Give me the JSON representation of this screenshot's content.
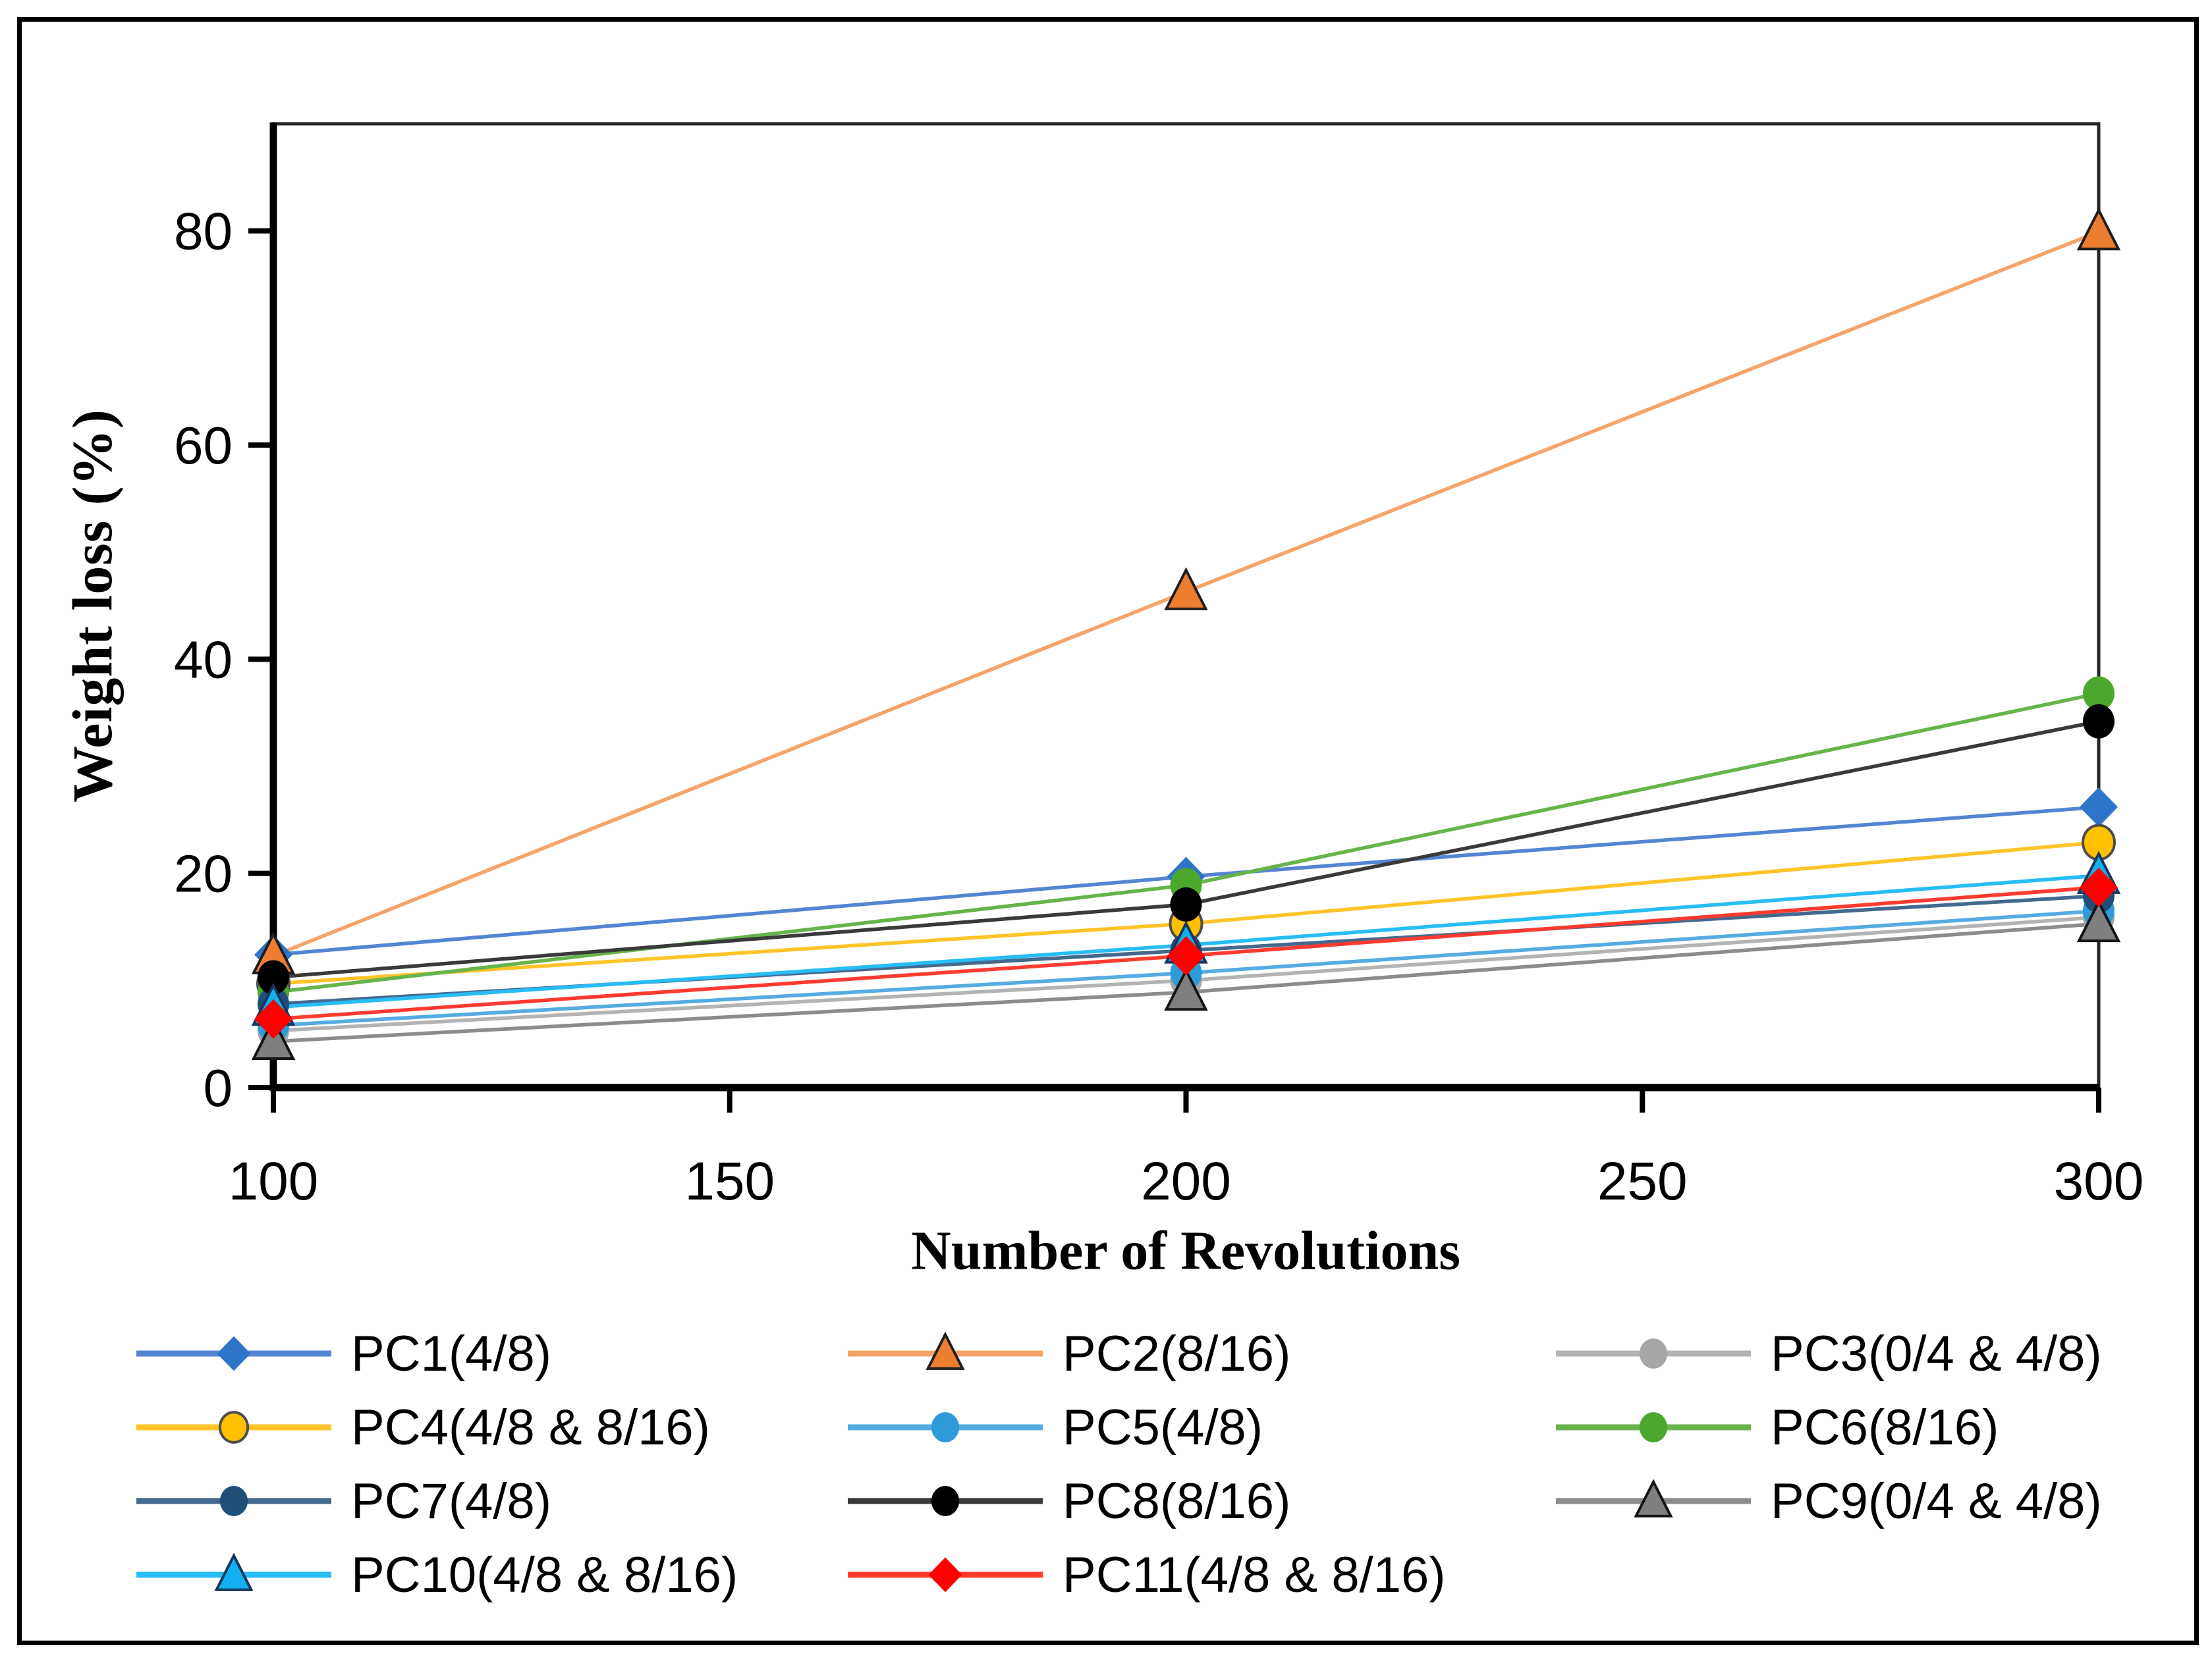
{
  "figure": {
    "border_color": "#000000",
    "background": "#ffffff"
  },
  "chart_data": {
    "type": "line",
    "title": "",
    "xlabel": "Number of Revolutions",
    "ylabel": "Weight loss (%)",
    "x": [
      100,
      200,
      300
    ],
    "xlim": [
      100,
      300
    ],
    "ylim": [
      0,
      90
    ],
    "x_ticks": [
      100,
      150,
      200,
      250,
      300
    ],
    "y_ticks": [
      0,
      20,
      40,
      60,
      80
    ],
    "grid": false,
    "legend_position": "bottom",
    "legend_columns": 3,
    "series": [
      {
        "name": "PC1(4/8)",
        "marker": "diamond",
        "marker_color": "#2E75C9",
        "line_color": "#5585D2",
        "outline": "none",
        "values": [
          12.4,
          19.7,
          26.2
        ]
      },
      {
        "name": "PC2(8/16)",
        "marker": "triangle",
        "marker_color": "#ED7D31",
        "line_color": "#F5A469",
        "outline": "#1f1f1f",
        "values": [
          12.3,
          46.3,
          79.9
        ]
      },
      {
        "name": "PC3(0/4 & 4/8)",
        "marker": "circle",
        "marker_color": "#A6A6A6",
        "line_color": "#B3B3B3",
        "outline": "none",
        "values": [
          5.3,
          10.0,
          15.9
        ]
      },
      {
        "name": "PC4(4/8 & 8/16)",
        "marker": "circle",
        "marker_color": "#FFC000",
        "line_color": "#FFC42A",
        "outline": "#4d4d4d",
        "values": [
          9.7,
          15.3,
          22.9
        ]
      },
      {
        "name": "PC5(4/8)",
        "marker": "circle",
        "marker_color": "#2E9BD8",
        "line_color": "#55ACE0",
        "outline": "none",
        "values": [
          5.8,
          10.7,
          16.5
        ]
      },
      {
        "name": "PC6(8/16)",
        "marker": "circle",
        "marker_color": "#4CA72F",
        "line_color": "#67B34C",
        "outline": "none",
        "values": [
          8.9,
          18.9,
          36.8
        ]
      },
      {
        "name": "PC7(4/8)",
        "marker": "circle",
        "marker_color": "#1F4E79",
        "line_color": "#44698E",
        "outline": "none",
        "values": [
          7.8,
          12.8,
          17.9
        ]
      },
      {
        "name": "PC8(8/16)",
        "marker": "circle",
        "marker_color": "#000000",
        "line_color": "#3a3a3a",
        "outline": "none",
        "values": [
          10.3,
          17.1,
          34.2
        ]
      },
      {
        "name": "PC9(0/4 & 4/8)",
        "marker": "triangle",
        "marker_color": "#7F7F7F",
        "line_color": "#8C8C8C",
        "outline": "#141414",
        "values": [
          4.3,
          8.9,
          15.3
        ]
      },
      {
        "name": "PC10(4/8 & 8/16)",
        "marker": "triangle",
        "marker_color": "#12B0F0",
        "line_color": "#27BDF5",
        "outline": "#17375E",
        "values": [
          7.5,
          13.3,
          19.8
        ]
      },
      {
        "name": "PC11(4/8 & 8/16)",
        "marker": "diamond",
        "marker_color": "#FF0000",
        "line_color": "#FF3B30",
        "outline": "none",
        "values": [
          6.4,
          12.3,
          18.7
        ]
      }
    ]
  }
}
